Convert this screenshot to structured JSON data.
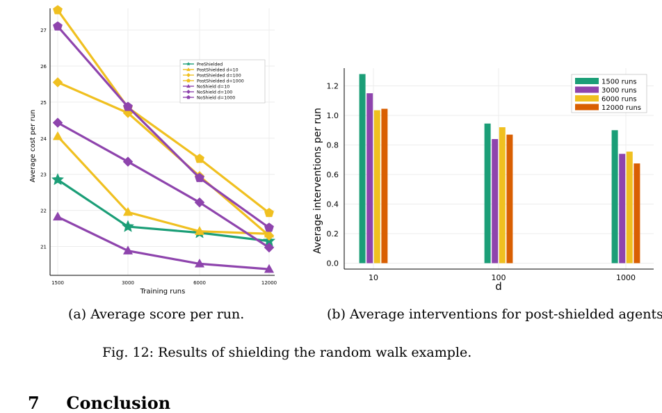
{
  "figure": {
    "caption": "Fig. 12: Results of shielding the random walk example.",
    "subcaption_a": "(a) Average score per run.",
    "subcaption_b": "(b) Average interventions for post-shielded agents."
  },
  "section": {
    "number": "7",
    "title": "Conclusion"
  },
  "chart_data": [
    {
      "type": "line",
      "title": "",
      "xlabel": "Training runs",
      "ylabel": "Average cost per run",
      "categories": [
        "1500",
        "3000",
        "6000",
        "12000"
      ],
      "ylim": [
        20.2,
        27.6
      ],
      "yticks": [
        21,
        22,
        23,
        24,
        25,
        26,
        27
      ],
      "grid": true,
      "legend_position": "top-right",
      "series": [
        {
          "name": "PreShielded",
          "values": [
            22.85,
            21.55,
            21.38,
            21.15
          ],
          "color": "#1b9e77",
          "marker": "star"
        },
        {
          "name": "PostShielded d=10",
          "values": [
            24.05,
            21.95,
            21.42,
            21.35
          ],
          "color": "#f0c020",
          "marker": "triangle"
        },
        {
          "name": "PostShielded d=100",
          "values": [
            25.55,
            24.7,
            22.95,
            21.3
          ],
          "color": "#f0c020",
          "marker": "diamond"
        },
        {
          "name": "PostShielded d=1000",
          "values": [
            27.55,
            24.85,
            23.43,
            21.93
          ],
          "color": "#f0c020",
          "marker": "pentagon"
        },
        {
          "name": "NoShield d=10",
          "values": [
            21.82,
            20.88,
            20.52,
            20.37
          ],
          "color": "#8e44ad",
          "marker": "triangle"
        },
        {
          "name": "NoShield d=100",
          "values": [
            24.43,
            23.35,
            22.22,
            20.97
          ],
          "color": "#8e44ad",
          "marker": "diamond"
        },
        {
          "name": "NoShield d=1000",
          "values": [
            27.1,
            24.87,
            22.9,
            21.52
          ],
          "color": "#8e44ad",
          "marker": "pentagon"
        }
      ]
    },
    {
      "type": "bar",
      "title": "",
      "xlabel": "d",
      "ylabel": "Average interventions per run",
      "categories": [
        "10",
        "100",
        "1000"
      ],
      "ylim": [
        -0.04,
        1.32
      ],
      "yticks": [
        "0.0",
        "0.2",
        "0.4",
        "0.6",
        "0.8",
        "1.0",
        "1.2"
      ],
      "grid": true,
      "legend_position": "top-right",
      "series": [
        {
          "name": "1500 runs",
          "values": [
            1.28,
            0.945,
            0.9
          ],
          "color": "#1b9e77"
        },
        {
          "name": "3000 runs",
          "values": [
            1.15,
            0.84,
            0.74
          ],
          "color": "#8e44ad"
        },
        {
          "name": "6000 runs",
          "values": [
            1.035,
            0.92,
            0.755
          ],
          "color": "#f0c020"
        },
        {
          "name": "12000 runs",
          "values": [
            1.045,
            0.87,
            0.675
          ],
          "color": "#d95f02"
        }
      ]
    }
  ]
}
